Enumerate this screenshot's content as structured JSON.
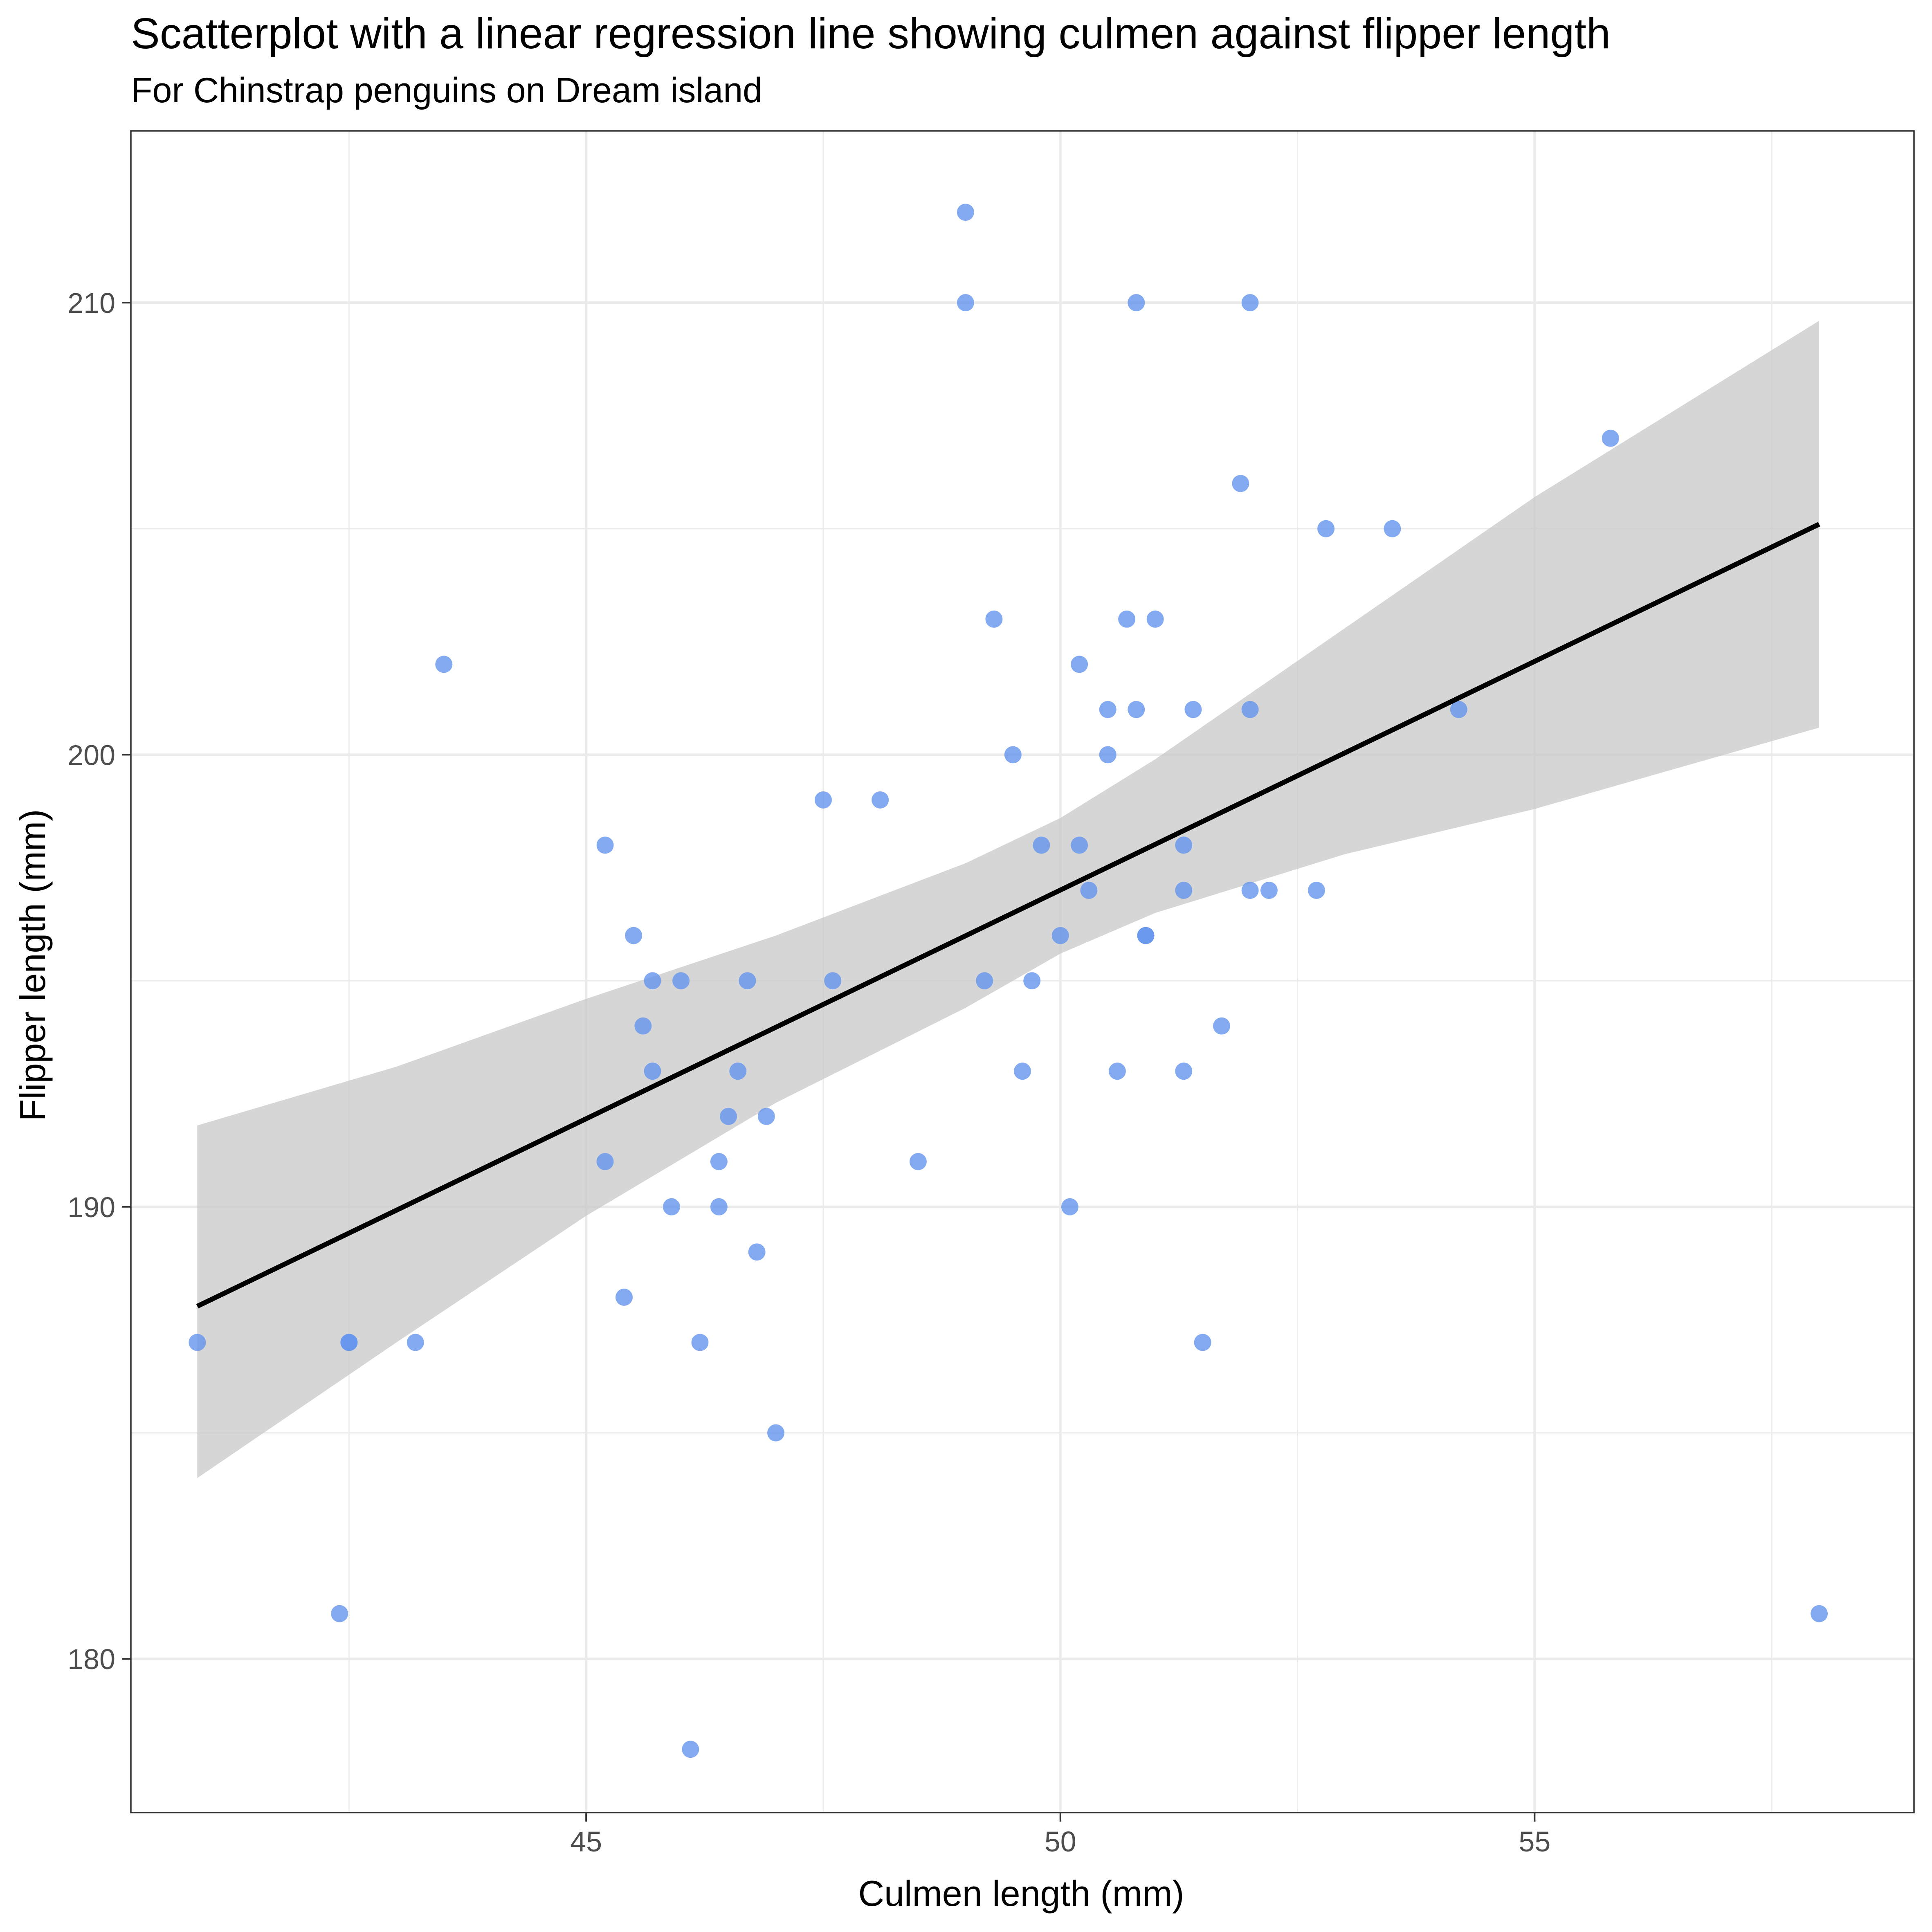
{
  "chart_data": {
    "type": "scatter",
    "title": "Scatterplot with a linear regression line showing culmen against flipper length",
    "subtitle": "For Chinstrap penguins on Dream island",
    "xlabel": "Culmen length (mm)",
    "ylabel": "Flipper length (mm)",
    "xlim": [
      40.2,
      59.0
    ],
    "ylim": [
      176.6,
      213.8
    ],
    "x_ticks": [
      45,
      50,
      55
    ],
    "y_ticks": [
      180,
      190,
      200,
      210
    ],
    "x_tick_labels": [
      "45",
      "50",
      "55"
    ],
    "y_tick_labels": [
      "180",
      "190",
      "200",
      "210"
    ],
    "grid": true,
    "legend": "none",
    "colors": {
      "points": "#6495ed",
      "regression_line": "#000000",
      "confidence_band": "#c8c8c8",
      "grid": "#ebebeb",
      "panel_border": "#333333"
    },
    "series": [
      {
        "points": [
          {
            "x": 46.5,
            "y": 192
          },
          {
            "x": 50.0,
            "y": 196
          },
          {
            "x": 51.3,
            "y": 193
          },
          {
            "x": 45.4,
            "y": 188
          },
          {
            "x": 52.7,
            "y": 197
          },
          {
            "x": 45.2,
            "y": 198
          },
          {
            "x": 46.1,
            "y": 178
          },
          {
            "x": 51.3,
            "y": 197
          },
          {
            "x": 46.0,
            "y": 195
          },
          {
            "x": 51.3,
            "y": 198
          },
          {
            "x": 46.6,
            "y": 193
          },
          {
            "x": 51.7,
            "y": 194
          },
          {
            "x": 47.0,
            "y": 185
          },
          {
            "x": 52.0,
            "y": 201
          },
          {
            "x": 45.9,
            "y": 190
          },
          {
            "x": 50.5,
            "y": 201
          },
          {
            "x": 50.3,
            "y": 197
          },
          {
            "x": 58.0,
            "y": 181
          },
          {
            "x": 46.4,
            "y": 190
          },
          {
            "x": 49.2,
            "y": 195
          },
          {
            "x": 42.4,
            "y": 181
          },
          {
            "x": 48.5,
            "y": 191
          },
          {
            "x": 43.2,
            "y": 187
          },
          {
            "x": 50.6,
            "y": 193
          },
          {
            "x": 46.7,
            "y": 195
          },
          {
            "x": 52.0,
            "y": 197
          },
          {
            "x": 50.5,
            "y": 200
          },
          {
            "x": 49.5,
            "y": 200
          },
          {
            "x": 46.4,
            "y": 191
          },
          {
            "x": 52.8,
            "y": 205
          },
          {
            "x": 40.9,
            "y": 187
          },
          {
            "x": 54.2,
            "y": 201
          },
          {
            "x": 42.5,
            "y": 187
          },
          {
            "x": 51.0,
            "y": 203
          },
          {
            "x": 49.7,
            "y": 195
          },
          {
            "x": 47.5,
            "y": 199
          },
          {
            "x": 47.6,
            "y": 195
          },
          {
            "x": 52.0,
            "y": 210
          },
          {
            "x": 46.9,
            "y": 192
          },
          {
            "x": 53.5,
            "y": 205
          },
          {
            "x": 49.0,
            "y": 210
          },
          {
            "x": 46.2,
            "y": 187
          },
          {
            "x": 50.9,
            "y": 196
          },
          {
            "x": 45.5,
            "y": 196
          },
          {
            "x": 50.9,
            "y": 196
          },
          {
            "x": 50.8,
            "y": 201
          },
          {
            "x": 50.1,
            "y": 190
          },
          {
            "x": 49.0,
            "y": 212
          },
          {
            "x": 51.5,
            "y": 187
          },
          {
            "x": 49.8,
            "y": 198
          },
          {
            "x": 48.1,
            "y": 199
          },
          {
            "x": 51.4,
            "y": 201
          },
          {
            "x": 45.7,
            "y": 193
          },
          {
            "x": 50.7,
            "y": 203
          },
          {
            "x": 42.5,
            "y": 187
          },
          {
            "x": 52.2,
            "y": 197
          },
          {
            "x": 45.2,
            "y": 191
          },
          {
            "x": 49.3,
            "y": 203
          },
          {
            "x": 50.2,
            "y": 202
          },
          {
            "x": 45.6,
            "y": 194
          },
          {
            "x": 51.9,
            "y": 206
          },
          {
            "x": 46.8,
            "y": 189
          },
          {
            "x": 45.7,
            "y": 195
          },
          {
            "x": 55.8,
            "y": 207
          },
          {
            "x": 43.5,
            "y": 202
          },
          {
            "x": 49.6,
            "y": 193
          },
          {
            "x": 50.8,
            "y": 210
          },
          {
            "x": 50.2,
            "y": 198
          }
        ]
      }
    ],
    "regression": {
      "x": [
        40.9,
        58.0
      ],
      "y": [
        187.8,
        205.1
      ],
      "band_x": [
        40.9,
        43.0,
        45.0,
        47.0,
        49.0,
        50.0,
        51.0,
        53.0,
        55.0,
        58.0
      ],
      "band_lower": [
        184.0,
        187.0,
        189.8,
        192.3,
        194.4,
        195.6,
        196.5,
        197.8,
        198.8,
        200.6
      ],
      "band_upper": [
        191.8,
        193.1,
        194.6,
        196.0,
        197.6,
        198.6,
        199.9,
        202.8,
        205.7,
        209.6
      ]
    }
  }
}
